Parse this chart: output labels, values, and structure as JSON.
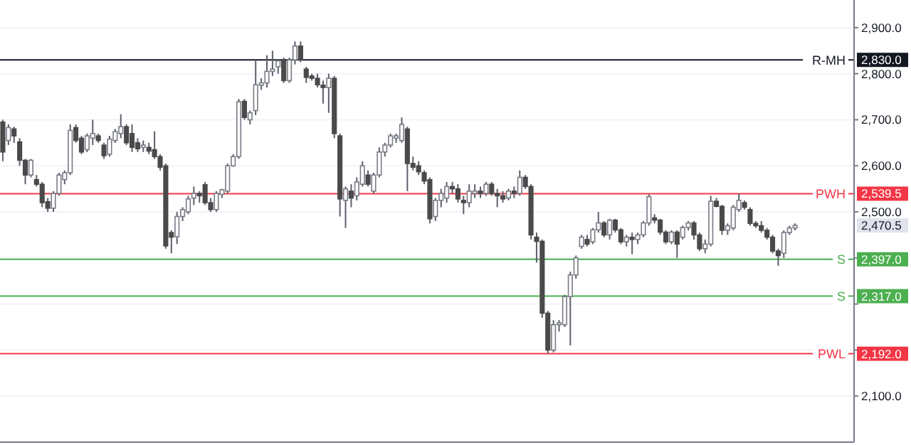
{
  "chart_data": {
    "type": "candlestick",
    "categories": [
      null,
      null,
      null,
      null,
      null,
      null,
      null,
      null,
      null,
      null,
      null,
      null,
      null,
      null,
      null,
      null,
      null,
      null,
      null,
      null,
      null,
      null,
      null,
      null,
      null,
      null,
      null,
      null,
      null,
      null,
      null,
      null,
      null,
      null,
      null,
      null,
      null,
      null,
      null,
      null,
      null,
      null,
      null,
      null,
      null,
      null,
      null,
      null,
      null,
      null,
      null,
      null,
      null,
      null,
      null,
      null,
      null,
      null,
      null,
      null,
      null,
      null,
      null,
      null,
      null,
      null,
      null,
      null,
      null,
      null,
      null,
      null,
      null,
      null,
      null,
      null,
      null,
      null,
      null,
      null,
      null,
      null,
      null,
      null,
      null,
      null,
      null,
      null,
      null,
      null,
      null,
      null,
      null,
      null,
      null,
      null,
      null,
      null,
      null,
      null,
      null,
      null,
      null,
      null,
      null,
      null,
      null,
      null,
      null,
      null,
      null,
      null,
      null,
      null,
      null,
      null,
      null,
      null,
      null,
      null,
      null,
      null,
      null,
      null,
      null,
      null,
      null,
      null,
      null,
      null,
      null,
      null,
      null,
      null,
      null,
      null,
      null,
      null,
      null,
      null,
      null,
      null,
      null,
      null,
      null,
      null,
      null,
      null,
      null,
      null,
      null,
      null
    ],
    "ohlc": [
      [
        2695,
        2700,
        2610,
        2630
      ],
      [
        2655,
        2690,
        2645,
        2683
      ],
      [
        2680,
        2685,
        2650,
        2665
      ],
      [
        2652,
        2660,
        2600,
        2612
      ],
      [
        2612,
        2615,
        2560,
        2580
      ],
      [
        2580,
        2615,
        2575,
        2612
      ],
      [
        2570,
        2580,
        2555,
        2560
      ],
      [
        2560,
        2565,
        2510,
        2520
      ],
      [
        2522,
        2530,
        2500,
        2508
      ],
      [
        2508,
        2545,
        2500,
        2540
      ],
      [
        2540,
        2585,
        2535,
        2580
      ],
      [
        2570,
        2590,
        2560,
        2585
      ],
      [
        2585,
        2690,
        2580,
        2677
      ],
      [
        2683,
        2690,
        2650,
        2655
      ],
      [
        2660,
        2665,
        2625,
        2630
      ],
      [
        2635,
        2670,
        2630,
        2665
      ],
      [
        2660,
        2700,
        2645,
        2670
      ],
      [
        2665,
        2670,
        2650,
        2655
      ],
      [
        2645,
        2650,
        2615,
        2622
      ],
      [
        2625,
        2665,
        2620,
        2658
      ],
      [
        2655,
        2680,
        2650,
        2674
      ],
      [
        2670,
        2712,
        2660,
        2685
      ],
      [
        2685,
        2690,
        2645,
        2650
      ],
      [
        2670,
        2690,
        2630,
        2640
      ],
      [
        2650,
        2660,
        2630,
        2637
      ],
      [
        2640,
        2655,
        2630,
        2645
      ],
      [
        2640,
        2650,
        2625,
        2632
      ],
      [
        2635,
        2675,
        2615,
        2620
      ],
      [
        2620,
        2625,
        2590,
        2597
      ],
      [
        2600,
        2605,
        2420,
        2426
      ],
      [
        2455,
        2460,
        2410,
        2445
      ],
      [
        2446,
        2500,
        2430,
        2490
      ],
      [
        2490,
        2510,
        2480,
        2505
      ],
      [
        2500,
        2535,
        2495,
        2528
      ],
      [
        2530,
        2555,
        2515,
        2540
      ],
      [
        2540,
        2545,
        2520,
        2535
      ],
      [
        2559,
        2565,
        2515,
        2520
      ],
      [
        2520,
        2530,
        2500,
        2505
      ],
      [
        2505,
        2545,
        2500,
        2540
      ],
      [
        2538,
        2550,
        2530,
        2548
      ],
      [
        2545,
        2605,
        2540,
        2600
      ],
      [
        2600,
        2625,
        2598,
        2620
      ],
      [
        2620,
        2745,
        2615,
        2739
      ],
      [
        2740,
        2745,
        2700,
        2705
      ],
      [
        2700,
        2720,
        2690,
        2715
      ],
      [
        2720,
        2830,
        2710,
        2776
      ],
      [
        2775,
        2790,
        2765,
        2780
      ],
      [
        2780,
        2840,
        2770,
        2805
      ],
      [
        2805,
        2850,
        2795,
        2810
      ],
      [
        2815,
        2830,
        2800,
        2828
      ],
      [
        2828,
        2835,
        2780,
        2785
      ],
      [
        2785,
        2835,
        2780,
        2830
      ],
      [
        2830,
        2870,
        2820,
        2860
      ],
      [
        2860,
        2870,
        2825,
        2830
      ],
      [
        2810,
        2815,
        2780,
        2792
      ],
      [
        2795,
        2800,
        2785,
        2790
      ],
      [
        2790,
        2800,
        2770,
        2776
      ],
      [
        2775,
        2785,
        2735,
        2770
      ],
      [
        2770,
        2800,
        2715,
        2790
      ],
      [
        2790,
        2795,
        2660,
        2670
      ],
      [
        2665,
        2670,
        2490,
        2528
      ],
      [
        2525,
        2555,
        2465,
        2550
      ],
      [
        2545,
        2560,
        2510,
        2530
      ],
      [
        2535,
        2575,
        2525,
        2565
      ],
      [
        2560,
        2610,
        2555,
        2600
      ],
      [
        2580,
        2590,
        2555,
        2560
      ],
      [
        2545,
        2585,
        2540,
        2580
      ],
      [
        2580,
        2640,
        2575,
        2630
      ],
      [
        2630,
        2650,
        2620,
        2645
      ],
      [
        2645,
        2670,
        2640,
        2665
      ],
      [
        2660,
        2670,
        2650,
        2665
      ],
      [
        2655,
        2705,
        2650,
        2690
      ],
      [
        2680,
        2685,
        2545,
        2605
      ],
      [
        2605,
        2620,
        2590,
        2597
      ],
      [
        2600,
        2610,
        2580,
        2587
      ],
      [
        2585,
        2590,
        2560,
        2567
      ],
      [
        2570,
        2575,
        2475,
        2485
      ],
      [
        2490,
        2530,
        2480,
        2525
      ],
      [
        2525,
        2550,
        2510,
        2540
      ],
      [
        2530,
        2565,
        2520,
        2555
      ],
      [
        2555,
        2565,
        2540,
        2550
      ],
      [
        2550,
        2560,
        2520,
        2528
      ],
      [
        2525,
        2535,
        2495,
        2520
      ],
      [
        2520,
        2560,
        2510,
        2545
      ],
      [
        2540,
        2560,
        2530,
        2545
      ],
      [
        2545,
        2555,
        2530,
        2540
      ],
      [
        2540,
        2565,
        2535,
        2560
      ],
      [
        2560,
        2565,
        2535,
        2540
      ],
      [
        2540,
        2550,
        2510,
        2535
      ],
      [
        2535,
        2545,
        2520,
        2528
      ],
      [
        2530,
        2550,
        2525,
        2545
      ],
      [
        2545,
        2555,
        2530,
        2540
      ],
      [
        2540,
        2590,
        2535,
        2575
      ],
      [
        2575,
        2580,
        2550,
        2555
      ],
      [
        2555,
        2560,
        2440,
        2450
      ],
      [
        2445,
        2455,
        2390,
        2436
      ],
      [
        2436,
        2440,
        2270,
        2280
      ],
      [
        2280,
        2285,
        2192,
        2200
      ],
      [
        2200,
        2265,
        2195,
        2255
      ],
      [
        2255,
        2265,
        2240,
        2259
      ],
      [
        2255,
        2320,
        2250,
        2316
      ],
      [
        2316,
        2370,
        2210,
        2363
      ],
      [
        2363,
        2405,
        2355,
        2400
      ],
      [
        2425,
        2450,
        2420,
        2445
      ],
      [
        2440,
        2450,
        2425,
        2430
      ],
      [
        2435,
        2465,
        2430,
        2461
      ],
      [
        2461,
        2500,
        2455,
        2476
      ],
      [
        2476,
        2480,
        2445,
        2450
      ],
      [
        2450,
        2485,
        2440,
        2482
      ],
      [
        2482,
        2485,
        2455,
        2461
      ],
      [
        2461,
        2465,
        2430,
        2435
      ],
      [
        2435,
        2450,
        2425,
        2445
      ],
      [
        2445,
        2455,
        2408,
        2440
      ],
      [
        2440,
        2455,
        2430,
        2450
      ],
      [
        2450,
        2480,
        2445,
        2476
      ],
      [
        2476,
        2538,
        2470,
        2533
      ],
      [
        2487,
        2495,
        2475,
        2482
      ],
      [
        2482,
        2485,
        2450,
        2456
      ],
      [
        2456,
        2460,
        2430,
        2435
      ],
      [
        2435,
        2460,
        2430,
        2456
      ],
      [
        2456,
        2460,
        2400,
        2430
      ],
      [
        2445,
        2470,
        2440,
        2466
      ],
      [
        2466,
        2480,
        2460,
        2476
      ],
      [
        2476,
        2480,
        2440,
        2450
      ],
      [
        2450,
        2455,
        2415,
        2420
      ],
      [
        2420,
        2440,
        2410,
        2430
      ],
      [
        2430,
        2535,
        2425,
        2523
      ],
      [
        2523,
        2530,
        2510,
        2512
      ],
      [
        2512,
        2515,
        2450,
        2460
      ],
      [
        2460,
        2475,
        2450,
        2470
      ],
      [
        2465,
        2515,
        2460,
        2510
      ],
      [
        2505,
        2540,
        2500,
        2525
      ],
      [
        2520,
        2525,
        2505,
        2510
      ],
      [
        2505,
        2510,
        2470,
        2475
      ],
      [
        2475,
        2480,
        2465,
        2470
      ],
      [
        2470,
        2480,
        2455,
        2460
      ],
      [
        2460,
        2465,
        2440,
        2445
      ],
      [
        2445,
        2450,
        2410,
        2415
      ],
      [
        2415,
        2420,
        2383,
        2405
      ],
      [
        2410,
        2460,
        2400,
        2455
      ],
      [
        2455,
        2470,
        2450,
        2465
      ],
      [
        2465,
        2475,
        2460,
        2470.5
      ],
      null,
      null,
      null,
      null,
      null,
      null,
      null,
      null,
      null,
      null
    ],
    "ylim": [
      2000,
      2960
    ],
    "yticks": [
      {
        "value": 2100,
        "label": "2,100.0"
      },
      {
        "value": 2200,
        "label": null
      },
      {
        "value": 2300,
        "label": null
      },
      {
        "value": 2400,
        "label": null
      },
      {
        "value": 2500,
        "label": "2,500.0"
      },
      {
        "value": 2600,
        "label": "2,600.0"
      },
      {
        "value": 2700,
        "label": "2,700.0"
      },
      {
        "value": 2800,
        "label": "2,800.0"
      },
      {
        "value": 2900,
        "label": "2,900.0"
      }
    ],
    "grid": "y",
    "ref_lines": [
      {
        "axis": "y",
        "value": 2830,
        "label": "R-MH",
        "color": "#131722"
      },
      {
        "axis": "y",
        "value": 2539.5,
        "label": "PWH",
        "color": "#f23645"
      },
      {
        "axis": "y",
        "value": 2397,
        "label": "S",
        "color": "#4caf50"
      },
      {
        "axis": "y",
        "value": 2317,
        "label": "S",
        "color": "#4caf50"
      },
      {
        "axis": "y",
        "value": 2192,
        "label": "PWL",
        "color": "#f23645"
      }
    ],
    "annotations": [
      "2,830.0",
      "2,539.5",
      "2,397.0",
      "2,317.0",
      "2,192.0",
      "2,470.5"
    ]
  }
}
